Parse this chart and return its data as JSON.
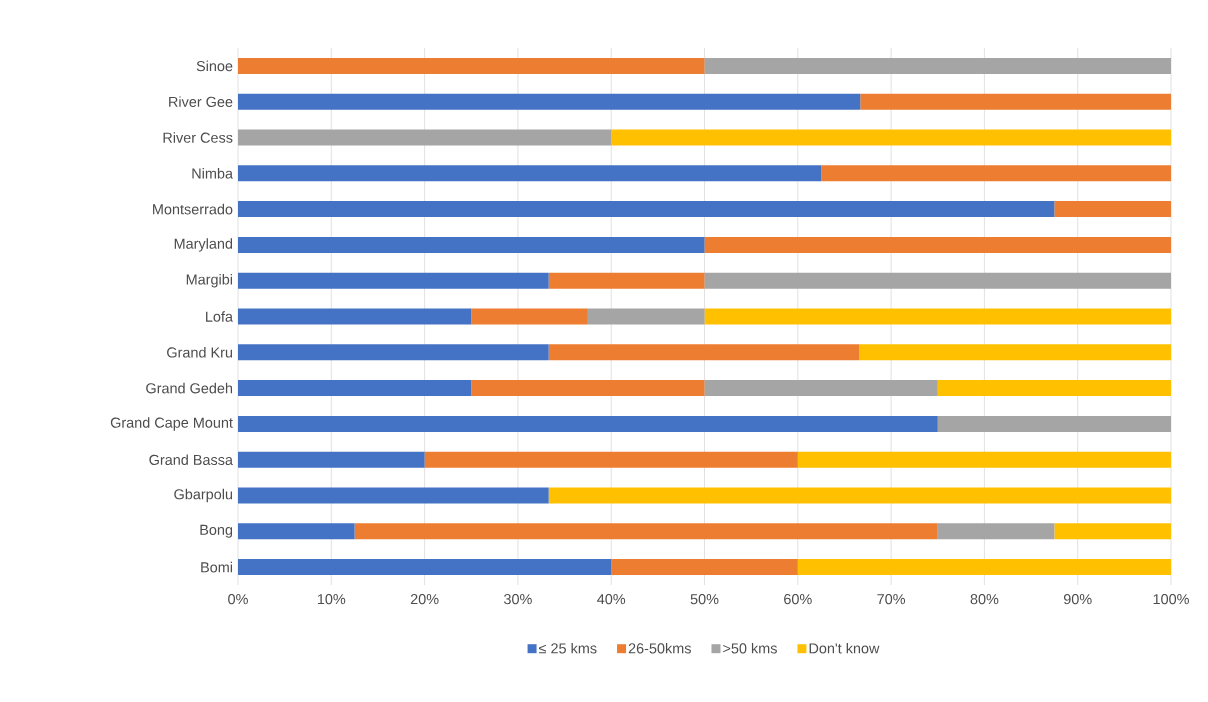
{
  "chart_data": {
    "type": "bar",
    "orientation": "horizontal",
    "stacked": true,
    "categories": [
      "Sinoe",
      "River Gee",
      "River Cess",
      "Nimba",
      "Montserrado",
      "Maryland",
      "Margibi",
      "Lofa",
      "Grand Kru",
      "Grand Gedeh",
      "Grand Cape Mount",
      "Grand Bassa",
      "Gbarpolu",
      "Bong",
      "Bomi"
    ],
    "series": [
      {
        "name": "≤ 25 kms",
        "color": "#4472c4",
        "values": [
          0,
          66.7,
          0,
          62.5,
          87.5,
          50,
          33.3,
          25,
          33.3,
          25,
          75,
          20,
          33.3,
          12.5,
          40
        ]
      },
      {
        "name": "26-50kms",
        "color": "#ed7d31",
        "values": [
          50,
          33.3,
          0,
          37.5,
          12.5,
          50,
          16.7,
          12.5,
          33.3,
          25,
          0,
          40,
          0,
          62.5,
          20
        ]
      },
      {
        "name": ">50 kms",
        "color": "#a5a5a5",
        "values": [
          50,
          0,
          40,
          0,
          0,
          0,
          50,
          12.5,
          0,
          25,
          25,
          0,
          0,
          12.5,
          0
        ]
      },
      {
        "name": "Don't know",
        "color": "#ffc000",
        "values": [
          0,
          0,
          60,
          0,
          0,
          0,
          0,
          50,
          33.4,
          25,
          0,
          40,
          66.7,
          12.5,
          40
        ]
      }
    ],
    "xlim": [
      0,
      100
    ],
    "xticks": [
      {
        "value": 0,
        "label": "0%"
      },
      {
        "value": 10,
        "label": "10%"
      },
      {
        "value": 20,
        "label": "20%"
      },
      {
        "value": 30,
        "label": "30%"
      },
      {
        "value": 40,
        "label": "40%"
      },
      {
        "value": 50,
        "label": "50%"
      },
      {
        "value": 60,
        "label": "60%"
      },
      {
        "value": 70,
        "label": "70%"
      },
      {
        "value": 80,
        "label": "80%"
      },
      {
        "value": 90,
        "label": "90%"
      },
      {
        "value": 100,
        "label": "100%"
      }
    ],
    "grid": "x",
    "legend": "bottom"
  }
}
